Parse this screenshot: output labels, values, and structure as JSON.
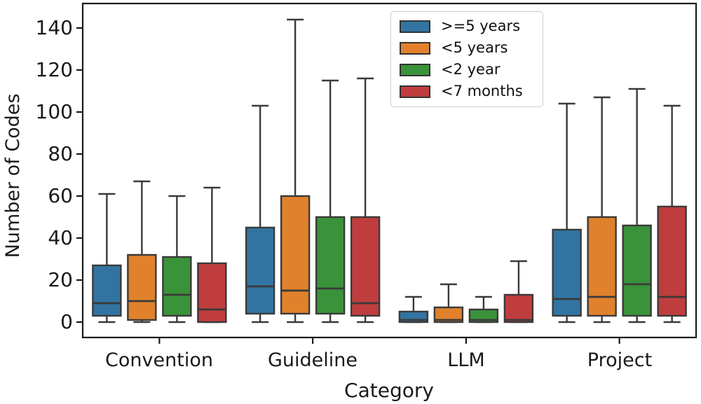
{
  "chart_data": {
    "type": "box",
    "title": "",
    "xlabel": "Category",
    "ylabel": "Number of Codes",
    "categories": [
      "Convention",
      "Guideline",
      "LLM",
      "Project"
    ],
    "yticks": [
      0,
      20,
      40,
      60,
      80,
      100,
      120,
      140
    ],
    "ylim": [
      -8,
      152
    ],
    "grid": false,
    "legend_position": "upper right inside plot",
    "edge_color": "#3A3A3A",
    "spine_color": "#1a1a1a",
    "series": [
      {
        "name": ">=5 years",
        "color": "#3274A1",
        "boxes": [
          {
            "category": "Convention",
            "whisker_low": 0,
            "q1": 3,
            "median": 9,
            "q3": 27,
            "whisker_high": 61
          },
          {
            "category": "Guideline",
            "whisker_low": 0,
            "q1": 4,
            "median": 17,
            "q3": 45,
            "whisker_high": 103
          },
          {
            "category": "LLM",
            "whisker_low": 0,
            "q1": 0,
            "median": 1,
            "q3": 5,
            "whisker_high": 12
          },
          {
            "category": "Project",
            "whisker_low": 0,
            "q1": 3,
            "median": 11,
            "q3": 44,
            "whisker_high": 104
          }
        ]
      },
      {
        "name": "<5 years",
        "color": "#E1812C",
        "boxes": [
          {
            "category": "Convention",
            "whisker_low": 0,
            "q1": 1,
            "median": 10,
            "q3": 32,
            "whisker_high": 67
          },
          {
            "category": "Guideline",
            "whisker_low": 0,
            "q1": 4,
            "median": 15,
            "q3": 60,
            "whisker_high": 144
          },
          {
            "category": "LLM",
            "whisker_low": 0,
            "q1": 0,
            "median": 1,
            "q3": 7,
            "whisker_high": 18
          },
          {
            "category": "Project",
            "whisker_low": 0,
            "q1": 3,
            "median": 12,
            "q3": 50,
            "whisker_high": 107
          }
        ]
      },
      {
        "name": "<2 year",
        "color": "#3A923A",
        "boxes": [
          {
            "category": "Convention",
            "whisker_low": 0,
            "q1": 3,
            "median": 13,
            "q3": 31,
            "whisker_high": 60
          },
          {
            "category": "Guideline",
            "whisker_low": 0,
            "q1": 4,
            "median": 16,
            "q3": 50,
            "whisker_high": 115
          },
          {
            "category": "LLM",
            "whisker_low": 0,
            "q1": 0,
            "median": 1,
            "q3": 6,
            "whisker_high": 12
          },
          {
            "category": "Project",
            "whisker_low": 0,
            "q1": 3,
            "median": 18,
            "q3": 46,
            "whisker_high": 111
          }
        ]
      },
      {
        "name": "<7 months",
        "color": "#C03D3E",
        "boxes": [
          {
            "category": "Convention",
            "whisker_low": 0,
            "q1": 0,
            "median": 6,
            "q3": 28,
            "whisker_high": 64
          },
          {
            "category": "Guideline",
            "whisker_low": 0,
            "q1": 3,
            "median": 9,
            "q3": 50,
            "whisker_high": 116
          },
          {
            "category": "LLM",
            "whisker_low": 0,
            "q1": 0,
            "median": 1,
            "q3": 13,
            "whisker_high": 29
          },
          {
            "category": "Project",
            "whisker_low": 0,
            "q1": 3,
            "median": 12,
            "q3": 55,
            "whisker_high": 103
          }
        ]
      }
    ]
  }
}
